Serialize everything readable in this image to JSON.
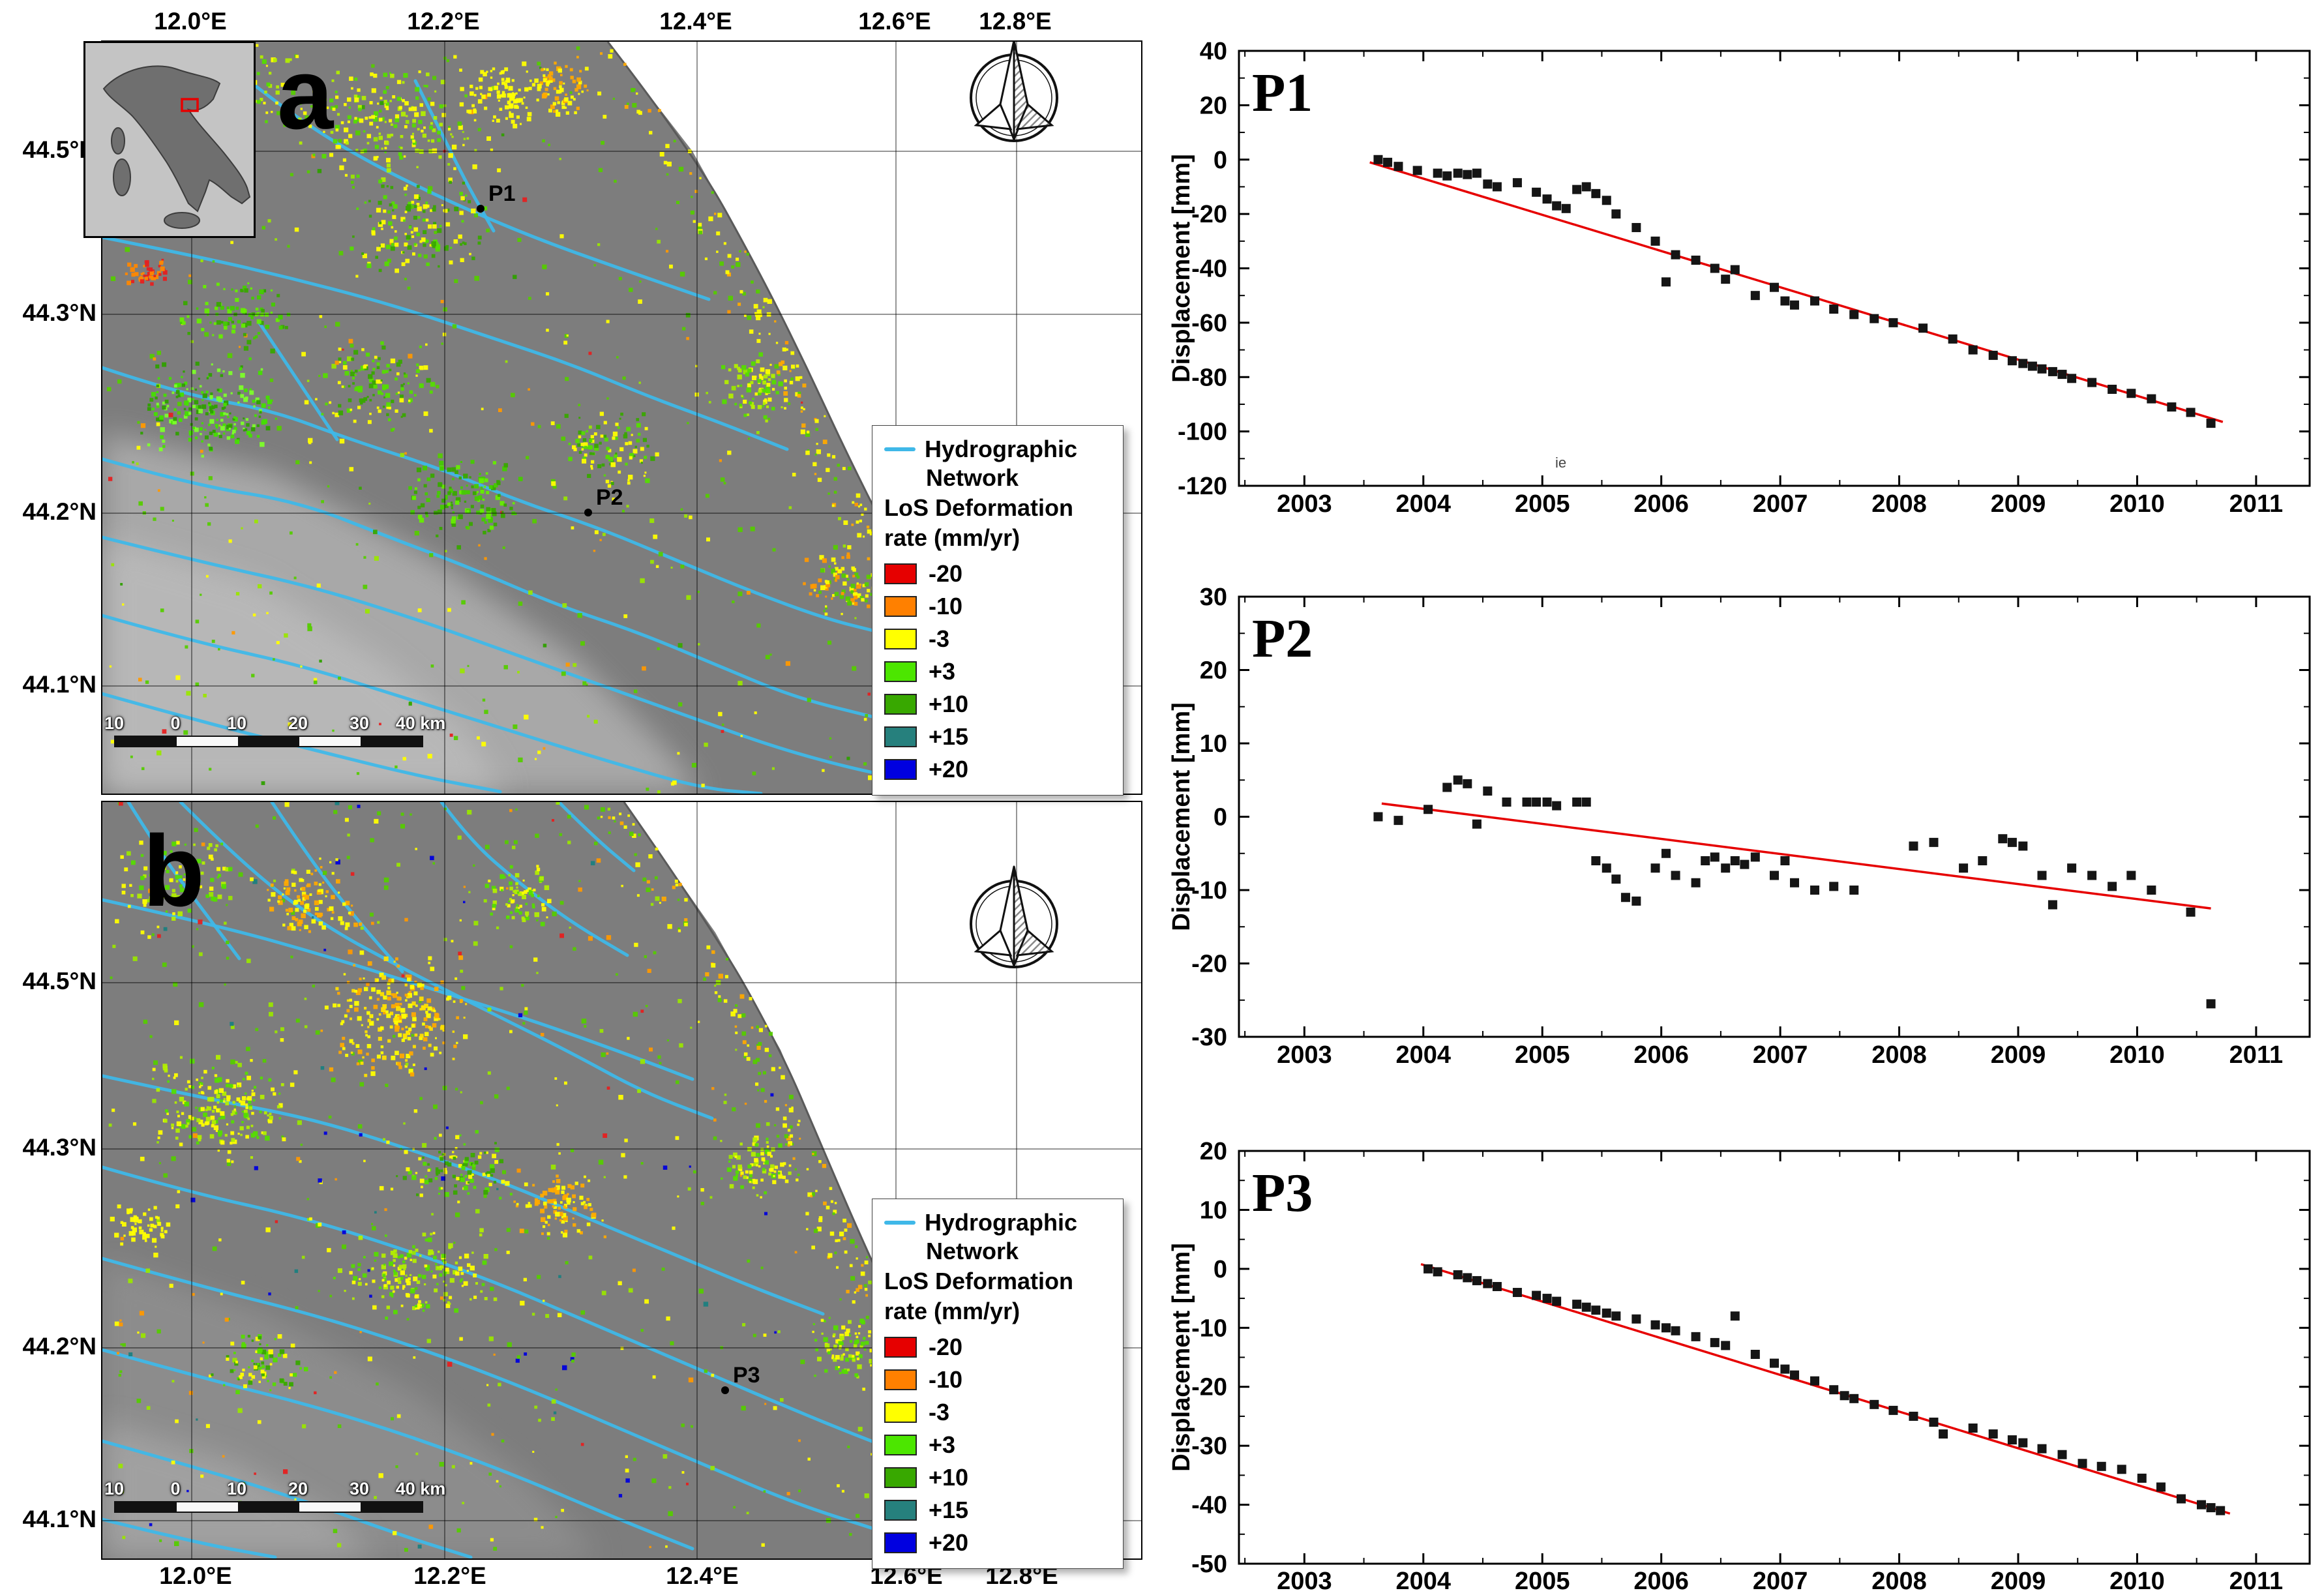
{
  "map_a": {
    "panel_label": "a",
    "top_axis_labels": [
      "12.0°E",
      "12.2°E",
      "12.4°E",
      "12.6°E",
      "12.8°E"
    ],
    "lat_labels": [
      "44.5°N",
      "44.3°N",
      "44.2°N",
      "44.1°N"
    ],
    "point_markers": [
      "P1",
      "P2"
    ],
    "scalebar_labels": [
      "10",
      "0",
      "10",
      "20",
      "30",
      "40 km"
    ]
  },
  "map_b": {
    "panel_label": "b",
    "bottom_axis_labels": [
      "12.0°E",
      "12.2°E",
      "12.4°E",
      "12.6°E",
      "12.8°E"
    ],
    "lat_labels": [
      "44.5°N",
      "44.3°N",
      "44.2°N",
      "44.1°N"
    ],
    "point_markers": [
      "P3"
    ],
    "scalebar_labels": [
      "10",
      "0",
      "10",
      "20",
      "30",
      "40 km"
    ]
  },
  "legend": {
    "hydro_line_label_1": "Hydrographic",
    "hydro_line_label_2": "Network",
    "rate_title_1": "LoS Deformation",
    "rate_title_2": "rate (mm/yr)",
    "hydro_color": "#3fb8e8",
    "entries": [
      {
        "label": "-20",
        "color": "#e60000"
      },
      {
        "label": "-10",
        "color": "#ff8000"
      },
      {
        "label": "-3",
        "color": "#ffff00"
      },
      {
        "label": "+3",
        "color": "#4ce600"
      },
      {
        "label": "+10",
        "color": "#38a800"
      },
      {
        "label": "+15",
        "color": "#26807d"
      },
      {
        "label": "+20",
        "color": "#0000e0"
      }
    ]
  },
  "chart_data": [
    {
      "type": "scatter",
      "title": "P1",
      "ylabel": "Displacement [mm]",
      "xlabel": "",
      "grid": false,
      "legend_position": "none",
      "marker_color": "#151515",
      "trend_color": "#e60000",
      "xlim": [
        2002.45,
        2011.45
      ],
      "ylim": [
        -120,
        40
      ],
      "xticks": [
        2003,
        2004,
        2005,
        2006,
        2007,
        2008,
        2009,
        2010,
        2011
      ],
      "yticks": [
        40,
        20,
        0,
        -20,
        -40,
        -60,
        -80,
        -100,
        -120
      ],
      "stray_text": "ie",
      "trend": [
        [
          2003.55,
          -1
        ],
        [
          2010.72,
          -96.5
        ]
      ],
      "points": [
        [
          2003.62,
          0
        ],
        [
          2003.7,
          -1
        ],
        [
          2003.79,
          -2.5
        ],
        [
          2003.95,
          -4
        ],
        [
          2004.12,
          -5
        ],
        [
          2004.2,
          -6
        ],
        [
          2004.29,
          -5
        ],
        [
          2004.37,
          -5.5
        ],
        [
          2004.45,
          -5
        ],
        [
          2004.54,
          -9
        ],
        [
          2004.62,
          -10
        ],
        [
          2004.79,
          -8.5
        ],
        [
          2004.95,
          -12
        ],
        [
          2005.04,
          -14.5
        ],
        [
          2005.12,
          -17
        ],
        [
          2005.2,
          -18
        ],
        [
          2005.29,
          -11
        ],
        [
          2005.37,
          -10
        ],
        [
          2005.45,
          -12.5
        ],
        [
          2005.54,
          -15
        ],
        [
          2005.62,
          -20
        ],
        [
          2005.79,
          -25
        ],
        [
          2005.95,
          -30
        ],
        [
          2006.04,
          -45
        ],
        [
          2006.12,
          -35
        ],
        [
          2006.29,
          -37
        ],
        [
          2006.45,
          -40
        ],
        [
          2006.54,
          -44
        ],
        [
          2006.62,
          -40.5
        ],
        [
          2006.79,
          -50
        ],
        [
          2006.95,
          -47
        ],
        [
          2007.04,
          -52
        ],
        [
          2007.12,
          -53.5
        ],
        [
          2007.29,
          -52
        ],
        [
          2007.45,
          -55
        ],
        [
          2007.62,
          -57
        ],
        [
          2007.79,
          -58.5
        ],
        [
          2007.95,
          -60
        ],
        [
          2008.2,
          -62
        ],
        [
          2008.45,
          -66
        ],
        [
          2008.62,
          -70
        ],
        [
          2008.79,
          -72
        ],
        [
          2008.95,
          -74
        ],
        [
          2009.04,
          -75
        ],
        [
          2009.12,
          -76
        ],
        [
          2009.2,
          -77
        ],
        [
          2009.29,
          -78
        ],
        [
          2009.37,
          -79
        ],
        [
          2009.45,
          -80.5
        ],
        [
          2009.62,
          -82
        ],
        [
          2009.79,
          -84.5
        ],
        [
          2009.95,
          -86
        ],
        [
          2010.12,
          -88
        ],
        [
          2010.29,
          -91
        ],
        [
          2010.45,
          -93
        ],
        [
          2010.62,
          -97
        ]
      ]
    },
    {
      "type": "scatter",
      "title": "P2",
      "ylabel": "Displacement [mm]",
      "xlabel": "",
      "grid": false,
      "legend_position": "none",
      "marker_color": "#151515",
      "trend_color": "#e60000",
      "xlim": [
        2002.45,
        2011.45
      ],
      "ylim": [
        -30,
        30
      ],
      "xticks": [
        2003,
        2004,
        2005,
        2006,
        2007,
        2008,
        2009,
        2010,
        2011
      ],
      "yticks": [
        30,
        20,
        10,
        0,
        -10,
        -20,
        -30
      ],
      "trend": [
        [
          2003.65,
          1.8
        ],
        [
          2010.62,
          -12.5
        ]
      ],
      "points": [
        [
          2003.62,
          0
        ],
        [
          2003.79,
          -0.5
        ],
        [
          2004.04,
          1
        ],
        [
          2004.2,
          4
        ],
        [
          2004.29,
          5
        ],
        [
          2004.37,
          4.5
        ],
        [
          2004.45,
          -1
        ],
        [
          2004.54,
          3.5
        ],
        [
          2004.7,
          2
        ],
        [
          2004.87,
          2
        ],
        [
          2004.95,
          2
        ],
        [
          2005.04,
          2
        ],
        [
          2005.12,
          1.5
        ],
        [
          2005.29,
          2
        ],
        [
          2005.37,
          2
        ],
        [
          2005.45,
          -6
        ],
        [
          2005.54,
          -7
        ],
        [
          2005.62,
          -8.5
        ],
        [
          2005.7,
          -11
        ],
        [
          2005.79,
          -11.5
        ],
        [
          2005.95,
          -7
        ],
        [
          2006.04,
          -5
        ],
        [
          2006.12,
          -8
        ],
        [
          2006.29,
          -9
        ],
        [
          2006.37,
          -6
        ],
        [
          2006.45,
          -5.5
        ],
        [
          2006.54,
          -7
        ],
        [
          2006.62,
          -6
        ],
        [
          2006.7,
          -6.5
        ],
        [
          2006.79,
          -5.5
        ],
        [
          2006.95,
          -8
        ],
        [
          2007.04,
          -6
        ],
        [
          2007.12,
          -9
        ],
        [
          2007.29,
          -10
        ],
        [
          2007.45,
          -9.5
        ],
        [
          2007.62,
          -10
        ],
        [
          2008.12,
          -4
        ],
        [
          2008.29,
          -3.5
        ],
        [
          2008.54,
          -7
        ],
        [
          2008.7,
          -6
        ],
        [
          2008.87,
          -3
        ],
        [
          2008.95,
          -3.5
        ],
        [
          2009.04,
          -4
        ],
        [
          2009.2,
          -8
        ],
        [
          2009.29,
          -12
        ],
        [
          2009.45,
          -7
        ],
        [
          2009.62,
          -8
        ],
        [
          2009.79,
          -9.5
        ],
        [
          2009.95,
          -8
        ],
        [
          2010.12,
          -10
        ],
        [
          2010.45,
          -13
        ],
        [
          2010.62,
          -25.5
        ]
      ]
    },
    {
      "type": "scatter",
      "title": "P3",
      "ylabel": "Displacement [mm]",
      "xlabel": "",
      "grid": false,
      "legend_position": "none",
      "marker_color": "#151515",
      "trend_color": "#e60000",
      "xlim": [
        2002.45,
        2011.45
      ],
      "ylim": [
        -50,
        20
      ],
      "xticks": [
        2003,
        2004,
        2005,
        2006,
        2007,
        2008,
        2009,
        2010,
        2011
      ],
      "yticks": [
        20,
        10,
        0,
        -10,
        -20,
        -30,
        -40,
        -50
      ],
      "trend": [
        [
          2003.98,
          0.8
        ],
        [
          2010.78,
          -41.5
        ]
      ],
      "points": [
        [
          2004.04,
          0
        ],
        [
          2004.12,
          -0.5
        ],
        [
          2004.29,
          -1
        ],
        [
          2004.37,
          -1.5
        ],
        [
          2004.45,
          -2
        ],
        [
          2004.54,
          -2.5
        ],
        [
          2004.62,
          -3
        ],
        [
          2004.79,
          -4
        ],
        [
          2004.95,
          -4.5
        ],
        [
          2005.04,
          -5
        ],
        [
          2005.12,
          -5.5
        ],
        [
          2005.29,
          -6
        ],
        [
          2005.37,
          -6.5
        ],
        [
          2005.45,
          -7
        ],
        [
          2005.54,
          -7.5
        ],
        [
          2005.62,
          -8
        ],
        [
          2005.79,
          -8.5
        ],
        [
          2005.95,
          -9.5
        ],
        [
          2006.04,
          -10
        ],
        [
          2006.12,
          -10.5
        ],
        [
          2006.29,
          -11.5
        ],
        [
          2006.45,
          -12.5
        ],
        [
          2006.54,
          -13
        ],
        [
          2006.62,
          -8
        ],
        [
          2006.79,
          -14.5
        ],
        [
          2006.95,
          -16
        ],
        [
          2007.04,
          -17
        ],
        [
          2007.12,
          -18
        ],
        [
          2007.29,
          -19
        ],
        [
          2007.45,
          -20.5
        ],
        [
          2007.54,
          -21.5
        ],
        [
          2007.62,
          -22
        ],
        [
          2007.79,
          -23
        ],
        [
          2007.95,
          -24
        ],
        [
          2008.12,
          -25
        ],
        [
          2008.29,
          -26
        ],
        [
          2008.37,
          -28
        ],
        [
          2008.62,
          -27
        ],
        [
          2008.79,
          -28
        ],
        [
          2008.95,
          -29
        ],
        [
          2009.04,
          -29.5
        ],
        [
          2009.2,
          -30.5
        ],
        [
          2009.37,
          -31.5
        ],
        [
          2009.54,
          -33
        ],
        [
          2009.7,
          -33.5
        ],
        [
          2009.87,
          -34
        ],
        [
          2010.04,
          -35.5
        ],
        [
          2010.2,
          -37
        ],
        [
          2010.37,
          -39
        ],
        [
          2010.54,
          -40
        ],
        [
          2010.62,
          -40.5
        ],
        [
          2010.7,
          -41
        ]
      ]
    }
  ]
}
